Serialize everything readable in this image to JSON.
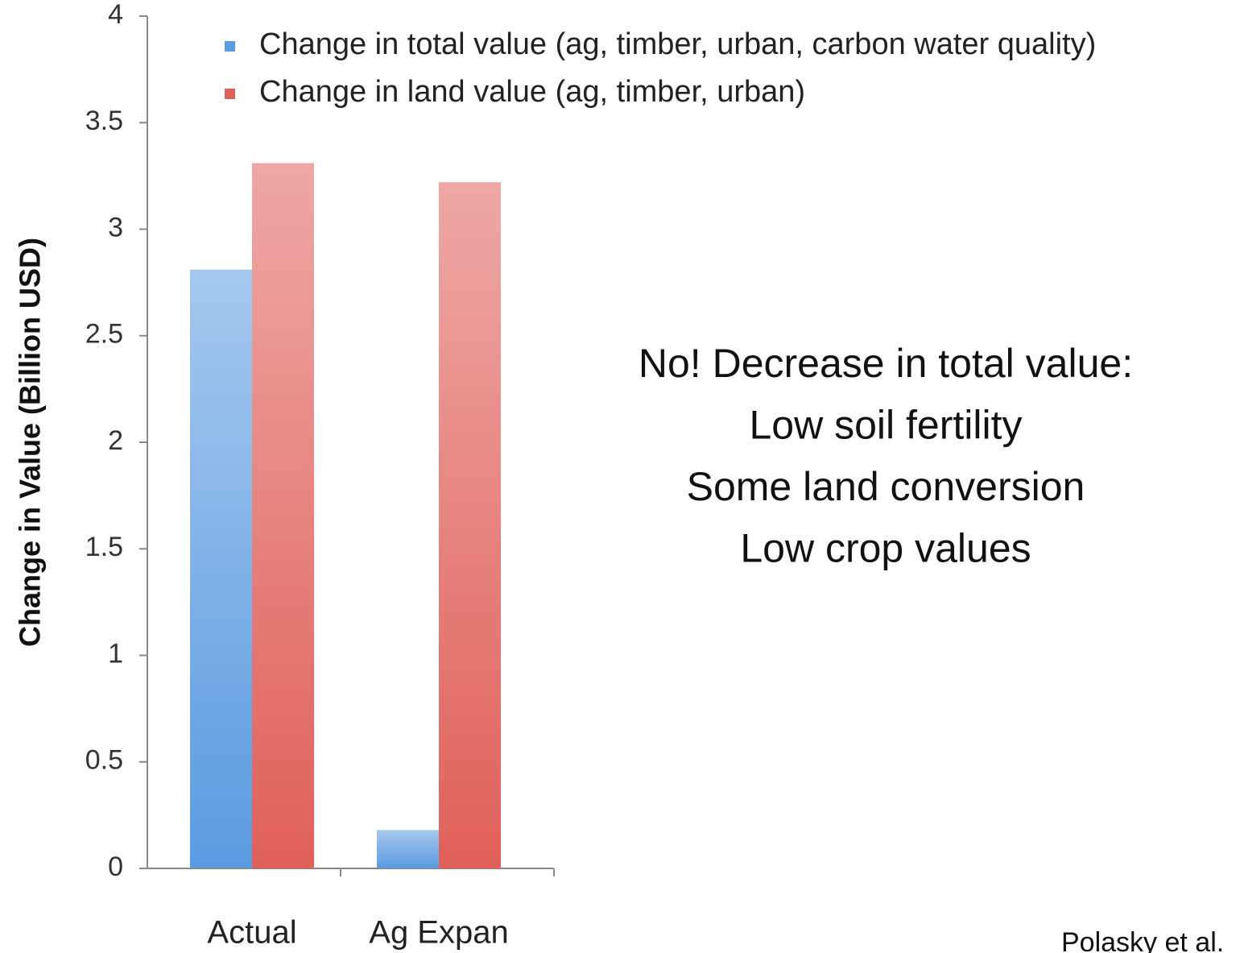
{
  "chart_data": {
    "type": "bar",
    "y_label": "Change in Value (Billion USD)",
    "categories": [
      "Actual",
      "Ag Expan"
    ],
    "series": [
      {
        "name": "Change in total value (ag, timber, urban, carbon water quality)",
        "color": "#5b9be0",
        "values": [
          2.81,
          0.18
        ]
      },
      {
        "name": "Change in land value (ag, timber, urban)",
        "color": "#e0605a",
        "values": [
          3.31,
          3.22
        ]
      }
    ],
    "ylim": [
      0,
      4
    ],
    "yticks": [
      0,
      0.5,
      1,
      1.5,
      2,
      2.5,
      3,
      3.5,
      4
    ],
    "grid": false,
    "legend": "top",
    "annotations": [
      "No! Decrease in total value:",
      "Low soil fertility",
      "Some land conversion",
      "Low crop values"
    ],
    "source": "Polasky et al."
  }
}
